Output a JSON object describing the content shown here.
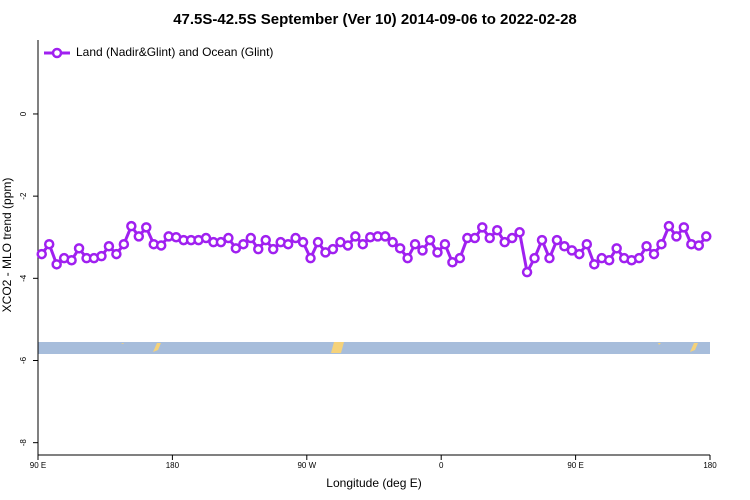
{
  "chart_data": {
    "type": "line",
    "title": "47.5S-42.5S September (Ver 10)   2014-09-06 to 2022-02-28",
    "x_label": "Longitude (deg E)",
    "y_label": "XCO2 - MLO trend (ppm)",
    "x": [
      92.5,
      97.5,
      102.5,
      107.5,
      112.5,
      117.5,
      122.5,
      127.5,
      132.5,
      137.5,
      142.5,
      147.5,
      152.5,
      157.5,
      162.5,
      167.5,
      172.5,
      177.5,
      182.5,
      187.5,
      192.5,
      197.5,
      202.5,
      207.5,
      212.5,
      217.5,
      222.5,
      227.5,
      232.5,
      237.5,
      242.5,
      247.5,
      252.5,
      257.5,
      262.5,
      267.5,
      272.5,
      277.5,
      282.5,
      287.5,
      292.5,
      297.5,
      302.5,
      307.5,
      312.5,
      317.5,
      322.5,
      327.5,
      332.5,
      337.5,
      342.5,
      347.5,
      352.5,
      357.5,
      362.5,
      367.5,
      372.5,
      377.5,
      382.5,
      387.5,
      392.5,
      397.5,
      402.5,
      407.5,
      412.5,
      417.5,
      422.5,
      427.5,
      432.5,
      437.5,
      442.5,
      447.5,
      452.5,
      457.5,
      462.5,
      467.5,
      472.5,
      477.5,
      482.5,
      487.5,
      492.5,
      497.5,
      502.5,
      507.5,
      512.5,
      517.5,
      522.5,
      527.5,
      532.5,
      537.5
    ],
    "series": [
      {
        "name": "Land (Nadir&Glint) and Ocean (Glint)",
        "color": "#a020f0",
        "values": [
          -3.41,
          -3.17,
          -3.66,
          -3.51,
          -3.56,
          -3.27,
          -3.51,
          -3.51,
          -3.46,
          -3.22,
          -3.41,
          -3.17,
          -2.73,
          -2.98,
          -2.76,
          -3.17,
          -3.2,
          -2.98,
          -3.0,
          -3.07,
          -3.07,
          -3.07,
          -3.02,
          -3.12,
          -3.12,
          -3.02,
          -3.27,
          -3.17,
          -3.02,
          -3.29,
          -3.07,
          -3.29,
          -3.12,
          -3.17,
          -3.02,
          -3.12,
          -3.51,
          -3.12,
          -3.37,
          -3.29,
          -3.12,
          -3.2,
          -2.98,
          -3.17,
          -3.0,
          -2.98,
          -2.98,
          -3.12,
          -3.27,
          -3.51,
          -3.17,
          -3.32,
          -3.07,
          -3.37,
          -3.17,
          -3.61,
          -3.51,
          -3.02,
          -3.02,
          -2.76,
          -3.02,
          -2.83,
          -3.12,
          -3.02,
          -2.88,
          -3.85,
          -3.51,
          -3.07,
          -3.51,
          -3.07,
          -3.22,
          -3.32,
          -3.41,
          -3.17,
          -3.66,
          -3.51,
          -3.56,
          -3.27,
          -3.51,
          -3.56,
          -3.51,
          -3.22,
          -3.41,
          -3.17,
          -2.73,
          -2.98,
          -2.76,
          -3.17,
          -3.2,
          -2.98
        ]
      }
    ],
    "xlim": [
      90,
      540
    ],
    "xticks": [
      {
        "value": 90,
        "label": "90 E"
      },
      {
        "value": 180,
        "label": "180"
      },
      {
        "value": 270,
        "label": "90 W"
      },
      {
        "value": 360,
        "label": "0"
      },
      {
        "value": 450,
        "label": "90 E"
      },
      {
        "value": 540,
        "label": "180"
      }
    ],
    "ylim": [
      -8.3,
      1.8
    ],
    "yticks": [
      0,
      -2,
      -4,
      -6,
      -8
    ],
    "legend": "top-left"
  }
}
